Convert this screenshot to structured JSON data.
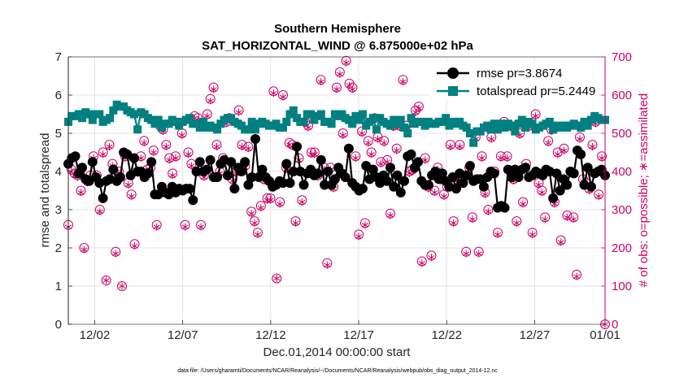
{
  "title": "Southern Hemisphere",
  "subtitle": "SAT_HORIZONTAL_WIND @ 6.875000e+02 hPa",
  "footnote": "data file: /Users/gharamti/Documents/NCAR/Reanalysis/~/Documents/NCAR/Reanalysis/webpub/obs_diag_output_2014-12.nc",
  "colors": {
    "rmse": "#000000",
    "spread": "#008080",
    "obs": "#cc0066",
    "grid": "#dcdcdc"
  },
  "chart_data": {
    "type": "line",
    "xlabel": "Dec.01,2014 00:00:00 start",
    "ylabel_left": "rmse and totalspread",
    "ylabel_right": "# of obs: o=possible; ∗=assimilated",
    "x_ticks": [
      "12/02",
      "12/07",
      "12/12",
      "12/17",
      "12/22",
      "12/27",
      "01/01"
    ],
    "y_left_ticks": [
      "0",
      "1",
      "2",
      "3",
      "4",
      "5",
      "6",
      "7"
    ],
    "y_right_ticks": [
      "0",
      "100",
      "200",
      "300",
      "400",
      "500",
      "600",
      "700"
    ],
    "y_left_range": [
      0,
      7
    ],
    "y_right_range": [
      0,
      700
    ],
    "x_range_days": [
      0.5,
      31.0
    ],
    "grid": true,
    "legend_position": "top-right",
    "series": [
      {
        "name": "rmse pr=3.8674",
        "axis": "left",
        "marker": "circle",
        "values": [
          4.2,
          4.35,
          4.4,
          3.95,
          4.1,
          3.8,
          3.75,
          4.25,
          3.85,
          3.7,
          3.3,
          3.75,
          3.8,
          4.05,
          3.75,
          3.85,
          4.5,
          4.45,
          3.9,
          4.35,
          4.0,
          4.0,
          3.85,
          3.95,
          4.25,
          3.4,
          3.4,
          3.6,
          3.45,
          3.4,
          3.6,
          3.45,
          3.55,
          3.5,
          3.55,
          3.55,
          3.25,
          4.0,
          4.25,
          4.0,
          4.05,
          4.3,
          3.85,
          3.85,
          4.2,
          4.3,
          3.9,
          4.25,
          3.55,
          4.1,
          4.0,
          4.25,
          3.65,
          3.85,
          4.85,
          3.85,
          4.05,
          3.85,
          3.75,
          3.6,
          3.65,
          3.75,
          3.7,
          4.2,
          3.7,
          4.0,
          4.65,
          4.0,
          3.65,
          3.95,
          4.05,
          3.9,
          3.95,
          4.3,
          3.65,
          4.0,
          3.65,
          3.8,
          4.1,
          3.95,
          3.85,
          4.6,
          3.7,
          3.6,
          3.5,
          3.55,
          4.15,
          3.8,
          4.05,
          3.85,
          3.7,
          3.9,
          3.75,
          4.1,
          3.6,
          3.9,
          3.45,
          3.75,
          4.4,
          4.45,
          4.1,
          4.25,
          3.75,
          3.65,
          3.65,
          3.9,
          4.0,
          3.8,
          3.95,
          3.75,
          3.6,
          3.85,
          3.55,
          3.95,
          3.7,
          3.9,
          4.15,
          3.75,
          3.8,
          3.8,
          3.6,
          3.85,
          4.0,
          3.95,
          3.05,
          3.1,
          3.05,
          4.05,
          3.85,
          4.05,
          3.85,
          4.05,
          4.1,
          3.85,
          3.9,
          4.0,
          3.95,
          3.9,
          4.05,
          4.0,
          3.3,
          3.95,
          3.5,
          3.8,
          3.65,
          4.0,
          3.95,
          4.55,
          4.45,
          3.65,
          4.1,
          3.6,
          3.95,
          4.0,
          4.05,
          3.9
        ]
      },
      {
        "name": "totalspread pr=5.2449",
        "axis": "left",
        "marker": "square",
        "values": [
          5.3,
          5.45,
          5.45,
          5.5,
          5.4,
          5.55,
          5.5,
          5.35,
          5.5,
          5.5,
          5.3,
          5.35,
          5.4,
          5.6,
          5.75,
          5.7,
          5.7,
          5.6,
          5.55,
          5.5,
          5.1,
          5.55,
          5.5,
          5.4,
          5.35,
          5.25,
          5.35,
          5.15,
          5.25,
          5.25,
          5.35,
          5.3,
          5.2,
          5.3,
          5.35,
          5.4,
          5.25,
          5.25,
          5.15,
          5.3,
          5.15,
          5.2,
          5.15,
          5.1,
          5.25,
          5.35,
          5.4,
          5.4,
          5.3,
          5.25,
          5.2,
          5.1,
          5.1,
          5.3,
          5.1,
          5.25,
          5.3,
          5.25,
          5.2,
          5.2,
          5.25,
          5.15,
          5.15,
          5.3,
          5.5,
          5.6,
          5.4,
          5.3,
          5.3,
          5.5,
          5.5,
          5.35,
          5.45,
          5.5,
          5.3,
          5.3,
          5.25,
          5.5,
          5.45,
          5.5,
          5.4,
          5.35,
          5.25,
          5.45,
          5.35,
          5.5,
          5.2,
          5.3,
          5.4,
          5.1,
          5.4,
          5.3,
          5.25,
          5.2,
          5.35,
          5.25,
          5.35,
          5.15,
          5.0,
          5.4,
          5.25,
          5.3,
          5.3,
          5.2,
          5.3,
          5.25,
          5.25,
          5.3,
          5.3,
          5.4,
          5.2,
          5.3,
          5.25,
          5.3,
          5.2,
          5.15,
          5.0,
          4.75,
          5.05,
          5.05,
          5.15,
          5.2,
          5.1,
          5.25,
          5.1,
          5.25,
          5.15,
          5.25,
          5.2,
          5.05,
          5.25,
          5.35,
          5.15,
          5.3,
          5.25,
          5.1,
          5.15,
          5.2,
          5.25,
          5.3,
          5.1,
          5.2,
          5.15,
          5.2,
          5.15,
          5.2,
          5.25,
          5.2,
          5.15,
          5.3,
          5.2,
          5.35,
          5.45,
          5.4,
          5.35,
          5.35
        ]
      },
      {
        "name": "# of obs possible",
        "axis": "right",
        "marker": "open-circle",
        "values": [
          260,
          405,
          395,
          390,
          350,
          200,
          375,
          390,
          440,
          390,
          300,
          450,
          115,
          470,
          420,
          190,
          400,
          100,
          440,
          370,
          340,
          210,
          400,
          440,
          480,
          405,
          410,
          455,
          260,
          520,
          510,
          470,
          435,
          395,
          440,
          525,
          500,
          260,
          450,
          420,
          545,
          540,
          260,
          390,
          550,
          590,
          620,
          470,
          400,
          435,
          530,
          540,
          380,
          400,
          560,
          470,
          415,
          465,
          295,
          270,
          240,
          310,
          380,
          330,
          330,
          610,
          120,
          320,
          600,
          410,
          475,
          470,
          270,
          435,
          325,
          530,
          520,
          450,
          450,
          390,
          640,
          410,
          160,
          410,
          360,
          620,
          660,
          500,
          690,
          630,
          620,
          440,
          235,
          505,
          265,
          480,
          450,
          540,
          490,
          425,
          480,
          430,
          290,
          520,
          460,
          520,
          640,
          520,
          400,
          405,
          560,
          570,
          165,
          435,
          360,
          180,
          350,
          410,
          380,
          340,
          360,
          470,
          270,
          380,
          470,
          380,
          190,
          410,
          280,
          490,
          190,
          440,
          345,
          300,
          490,
          400,
          240,
          440,
          530,
          440,
          520,
          380,
          270,
          500,
          320,
          420,
          520,
          240,
          550,
          370,
          350,
          280,
          480,
          510,
          320,
          450,
          220,
          460,
          285,
          400,
          280,
          130,
          490,
          380,
          370,
          355,
          470,
          530,
          340,
          440,
          0
        ]
      },
      {
        "name": "# of obs assimilated",
        "axis": "right",
        "marker": "asterisk",
        "values": [
          255,
          400,
          390,
          385,
          345,
          195,
          370,
          385,
          435,
          385,
          295,
          445,
          115,
          465,
          415,
          185,
          395,
          100,
          435,
          365,
          335,
          205,
          395,
          435,
          475,
          400,
          405,
          450,
          255,
          515,
          505,
          465,
          430,
          390,
          435,
          520,
          495,
          255,
          445,
          415,
          540,
          535,
          255,
          385,
          545,
          585,
          615,
          465,
          395,
          430,
          525,
          535,
          375,
          395,
          555,
          465,
          410,
          460,
          290,
          265,
          235,
          305,
          375,
          325,
          325,
          605,
          120,
          315,
          595,
          405,
          470,
          465,
          265,
          430,
          320,
          525,
          515,
          445,
          445,
          385,
          635,
          405,
          155,
          405,
          355,
          615,
          655,
          495,
          685,
          625,
          615,
          435,
          230,
          500,
          260,
          475,
          445,
          535,
          485,
          420,
          475,
          425,
          285,
          515,
          455,
          515,
          635,
          515,
          395,
          400,
          555,
          565,
          160,
          430,
          355,
          175,
          345,
          405,
          375,
          335,
          355,
          465,
          265,
          375,
          465,
          375,
          185,
          405,
          275,
          485,
          185,
          435,
          340,
          295,
          485,
          395,
          235,
          435,
          525,
          435,
          515,
          375,
          265,
          495,
          315,
          415,
          515,
          235,
          545,
          365,
          345,
          275,
          475,
          505,
          315,
          445,
          215,
          455,
          280,
          395,
          275,
          125,
          485,
          375,
          365,
          350,
          465,
          525,
          335,
          435,
          0
        ]
      }
    ]
  }
}
